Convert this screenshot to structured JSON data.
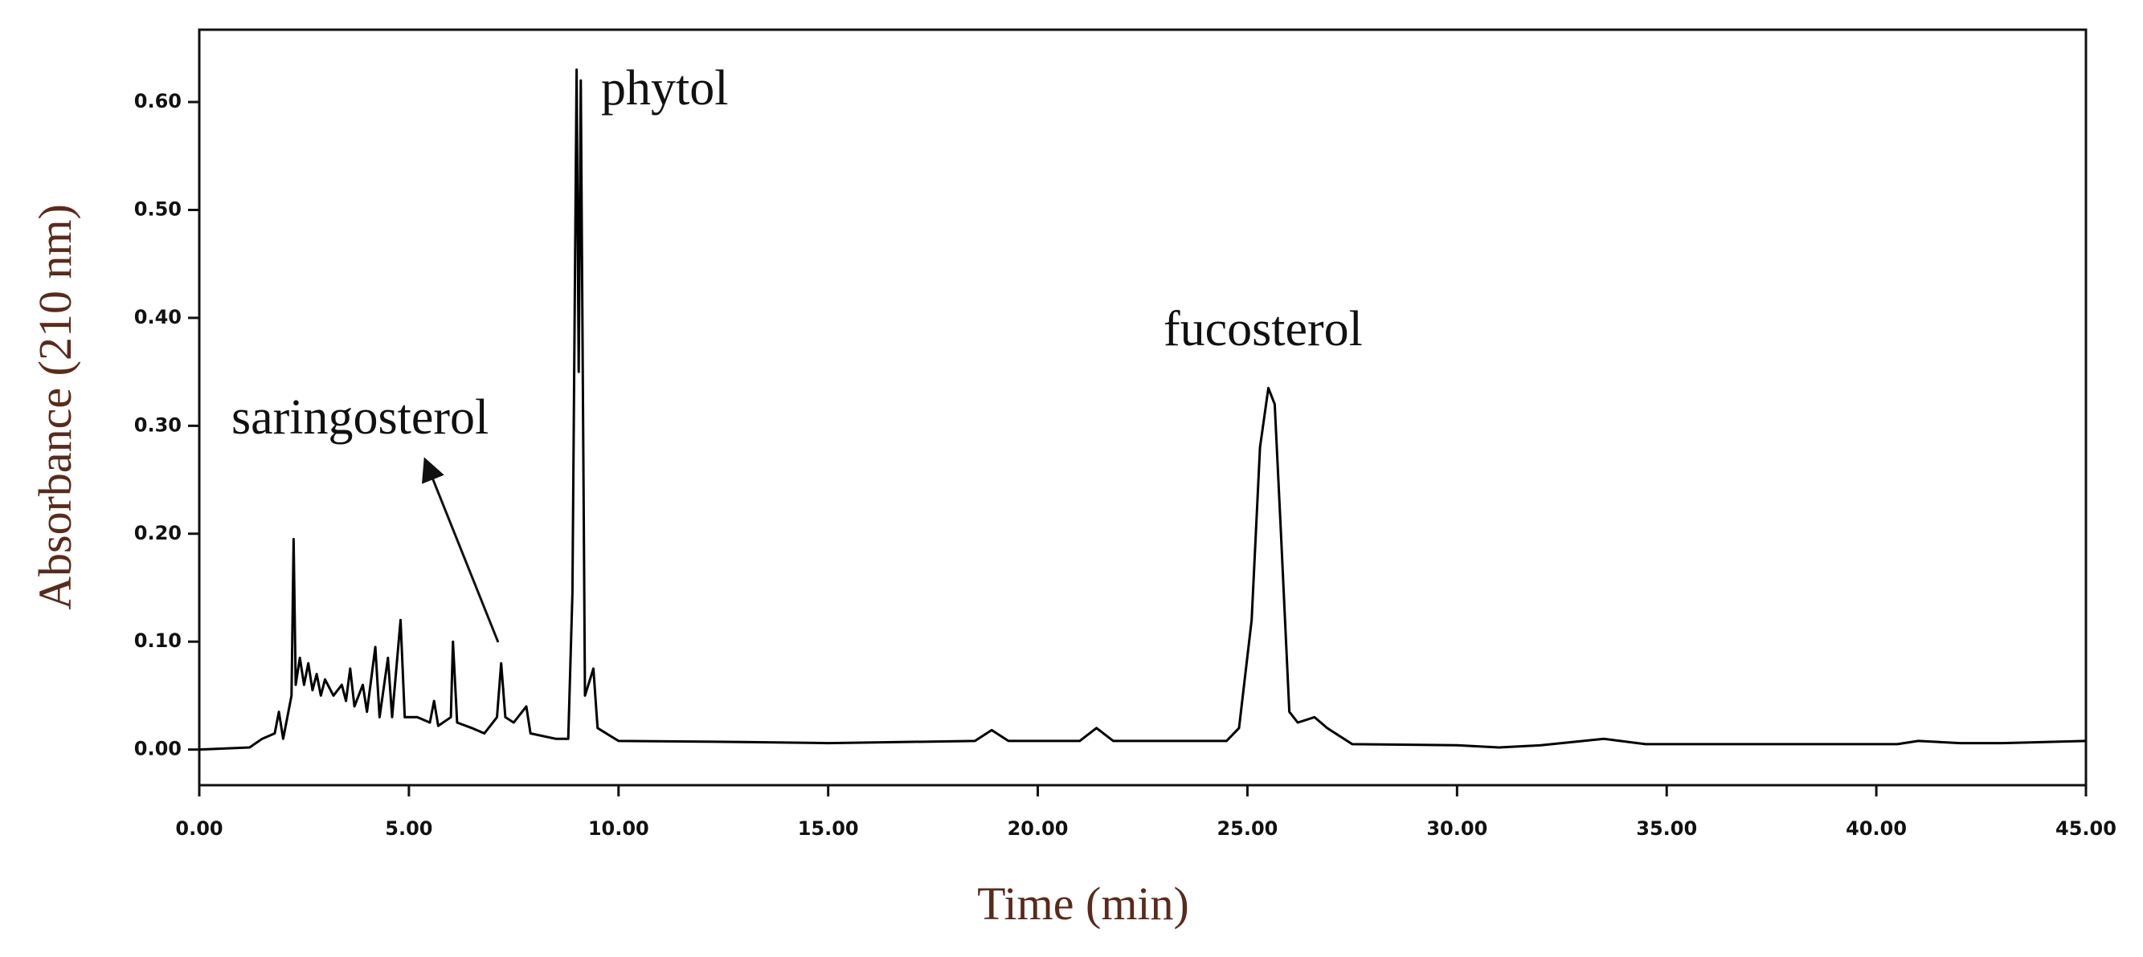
{
  "chart_data": {
    "type": "line",
    "x_label": "Time (min)",
    "y_label": "Absorbance (210 nm)",
    "annotations": [
      "phytol",
      "fucosterol",
      "saringosterol"
    ],
    "xlim": [
      0,
      45
    ],
    "ylim": [
      -0.033,
      0.667
    ],
    "xticks": [
      {
        "value": 0,
        "label": "0.00"
      },
      {
        "value": 5,
        "label": "5.00"
      },
      {
        "value": 10,
        "label": "10.00"
      },
      {
        "value": 15,
        "label": "15.00"
      },
      {
        "value": 20,
        "label": "20.00"
      },
      {
        "value": 25,
        "label": "25.00"
      },
      {
        "value": 30,
        "label": "30.00"
      },
      {
        "value": 35,
        "label": "35.00"
      },
      {
        "value": 40,
        "label": "40.00"
      },
      {
        "value": 45,
        "label": "45.00"
      }
    ],
    "yticks": [
      {
        "value": 0,
        "label": "0.00"
      },
      {
        "value": 0.1,
        "label": "0.10"
      },
      {
        "value": 0.2,
        "label": "0.20"
      },
      {
        "value": 0.3,
        "label": "0.30"
      },
      {
        "value": 0.4,
        "label": "0.40"
      },
      {
        "value": 0.5,
        "label": "0.50"
      },
      {
        "value": 0.6,
        "label": "0.60"
      }
    ],
    "series": [
      {
        "color": "#000000",
        "x": [
          0,
          1.2,
          1.5,
          1.8,
          1.9,
          2.0,
          2.1,
          2.2,
          2.25,
          2.3,
          2.4,
          2.5,
          2.6,
          2.7,
          2.8,
          2.9,
          3.0,
          3.2,
          3.4,
          3.5,
          3.6,
          3.7,
          3.9,
          4.0,
          4.2,
          4.3,
          4.5,
          4.6,
          4.8,
          4.9,
          5.2,
          5.5,
          5.6,
          5.7,
          6.0,
          6.05,
          6.15,
          6.5,
          6.8,
          7.1,
          7.2,
          7.3,
          7.5,
          7.8,
          7.9,
          8.5,
          8.8,
          8.9,
          9.0,
          9.05,
          9.1,
          9.2,
          9.4,
          9.5,
          10,
          13,
          15,
          18.5,
          18.9,
          19.3,
          21,
          21.4,
          21.8,
          24.5,
          24.8,
          25.1,
          25.3,
          25.5,
          25.65,
          25.8,
          26.0,
          26.2,
          26.6,
          26.9,
          27.5,
          30,
          31,
          32,
          33.5,
          34.5,
          40.5,
          41,
          42,
          43,
          45
        ],
        "values": [
          0,
          0.002,
          0.01,
          0.015,
          0.035,
          0.01,
          0.03,
          0.05,
          0.195,
          0.06,
          0.085,
          0.06,
          0.08,
          0.055,
          0.07,
          0.05,
          0.065,
          0.05,
          0.06,
          0.045,
          0.075,
          0.04,
          0.06,
          0.035,
          0.095,
          0.03,
          0.085,
          0.03,
          0.12,
          0.03,
          0.03,
          0.025,
          0.045,
          0.022,
          0.03,
          0.1,
          0.025,
          0.02,
          0.015,
          0.03,
          0.08,
          0.03,
          0.025,
          0.04,
          0.015,
          0.01,
          0.01,
          0.145,
          0.63,
          0.35,
          0.62,
          0.05,
          0.075,
          0.02,
          0.008,
          0.007,
          0.006,
          0.008,
          0.018,
          0.008,
          0.008,
          0.02,
          0.008,
          0.008,
          0.02,
          0.12,
          0.28,
          0.335,
          0.32,
          0.2,
          0.035,
          0.025,
          0.03,
          0.02,
          0.005,
          0.004,
          0.002,
          0.004,
          0.01,
          0.005,
          0.005,
          0.008,
          0.006,
          0.006,
          0.008
        ]
      }
    ]
  }
}
